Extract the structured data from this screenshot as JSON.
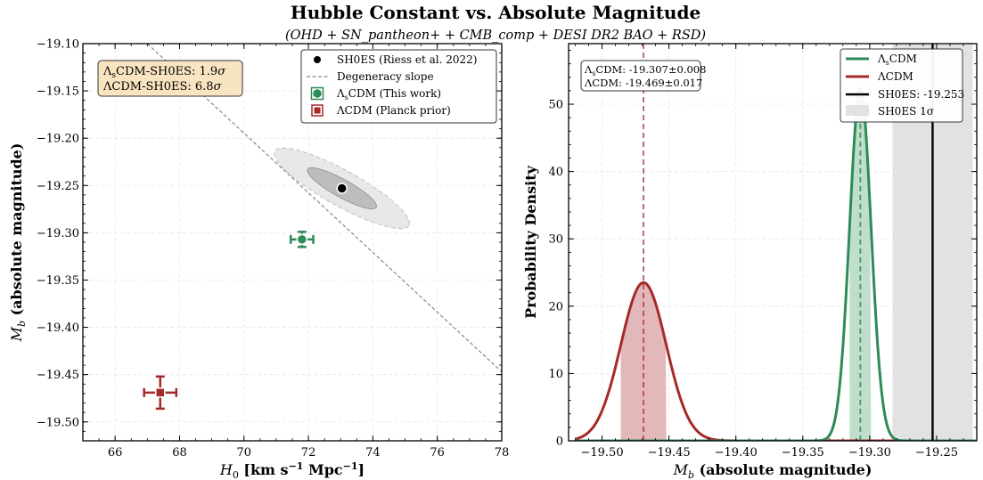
{
  "title": "Hubble Constant vs. Absolute Magnitude",
  "subtitle": "(OHD + SN_pantheon+ + CMB_comp + DESI DR2 BAO + RSD)",
  "colors": {
    "green": "#2e8b57",
    "red": "#a52a2a",
    "black": "#000000",
    "ellipse_fill": "#bdbdbd",
    "band": "#cccccc",
    "grid": "#e6e6e6",
    "annot_bg": "#f8e4c1",
    "red_fill": "#d9a0a4",
    "green_fill": "#a9d3bb"
  },
  "chart_data": [
    {
      "type": "scatter",
      "xlabel_main": "H",
      "xlabel_sub": "0",
      "xlabel_unit": " [km s",
      "xlabel_sup1": "−1",
      "xlabel_mid": " Mpc",
      "xlabel_sup2": "−1",
      "xlabel_end": "]",
      "ylabel_main": "M",
      "ylabel_sub": "b",
      "ylabel_rest": " (absolute magnitude)",
      "xlim": [
        65,
        78
      ],
      "ylim": [
        -19.52,
        -19.1
      ],
      "xticks": [
        66,
        68,
        70,
        72,
        74,
        76,
        78
      ],
      "yticks": [
        -19.1,
        -19.15,
        -19.2,
        -19.25,
        -19.3,
        -19.35,
        -19.4,
        -19.45,
        -19.5
      ],
      "ytick_labels": [
        "−19.10",
        "−19.15",
        "−19.20",
        "−19.25",
        "−19.30",
        "−19.35",
        "−19.40",
        "−19.45",
        "−19.50"
      ],
      "grid": true,
      "legend_position": "top-right",
      "annotation": {
        "line1_a": "Λ",
        "line1_sub": "s",
        "line1_b": "CDM-SH0ES: 1.9",
        "line1_sigma": "σ",
        "line2": "ΛCDM-SH0ES: 6.8",
        "line2_sigma": "σ"
      },
      "series": [
        {
          "name": "SH0ES (Riess et al. 2022)",
          "x": 73.04,
          "y": -19.253,
          "marker": "circle-black",
          "ellipse_1sigma": {
            "rx": 1.04,
            "ry": 0.022
          },
          "ellipse_2sigma": {
            "rx": 2.08,
            "ry": 0.044
          },
          "correlation": -0.9
        },
        {
          "name": "Degeneracy slope",
          "line": [
            [
              67.0,
              -19.1
            ],
            [
              78.0,
              -19.447
            ]
          ],
          "style": "dashed"
        },
        {
          "name_a": "Λ",
          "name_sub": "s",
          "name_b": "CDM (This work)",
          "x": 71.8,
          "y": -19.307,
          "xerr": 0.35,
          "yerr": 0.008,
          "marker": "circle-green"
        },
        {
          "name": "ΛCDM (Planck prior)",
          "x": 67.4,
          "y": -19.469,
          "xerr": 0.5,
          "yerr": 0.017,
          "marker": "square-red"
        }
      ]
    },
    {
      "type": "line",
      "xlabel_main": "M",
      "xlabel_sub": "b",
      "xlabel_rest": " (absolute magnitude)",
      "ylabel": "Probability Density",
      "xlim": [
        -19.525,
        -19.22
      ],
      "ylim": [
        0,
        59
      ],
      "xticks": [
        -19.5,
        -19.45,
        -19.4,
        -19.35,
        -19.3,
        -19.25
      ],
      "xtick_labels": [
        "−19.50",
        "−19.45",
        "−19.40",
        "−19.35",
        "−19.30",
        "−19.25"
      ],
      "yticks": [
        0,
        10,
        20,
        30,
        40,
        50
      ],
      "grid": true,
      "legend_position": "top-right",
      "annotation": {
        "line1_a": "Λ",
        "line1_sub": "s",
        "line1_b": "CDM: -19.307±0.008",
        "line2": "ΛCDM: -19.469±0.017"
      },
      "series": [
        {
          "name_a": "Λ",
          "name_sub": "s",
          "name_b": "CDM",
          "peak_value": 52.4,
          "mean": -19.307,
          "std": 0.008,
          "color": "green",
          "fill_range": [
            -19.315,
            -19.299
          ]
        },
        {
          "name": "ΛCDM",
          "peak_value": 23.5,
          "mean": -19.469,
          "std": 0.017,
          "color": "red",
          "fill_range": [
            -19.486,
            -19.452
          ]
        },
        {
          "name": "SH0ES: -19.253",
          "value": -19.253,
          "color": "black"
        },
        {
          "name": "SH0ES 1σ",
          "range": [
            -19.283,
            -19.223
          ],
          "color": "band"
        }
      ]
    }
  ]
}
